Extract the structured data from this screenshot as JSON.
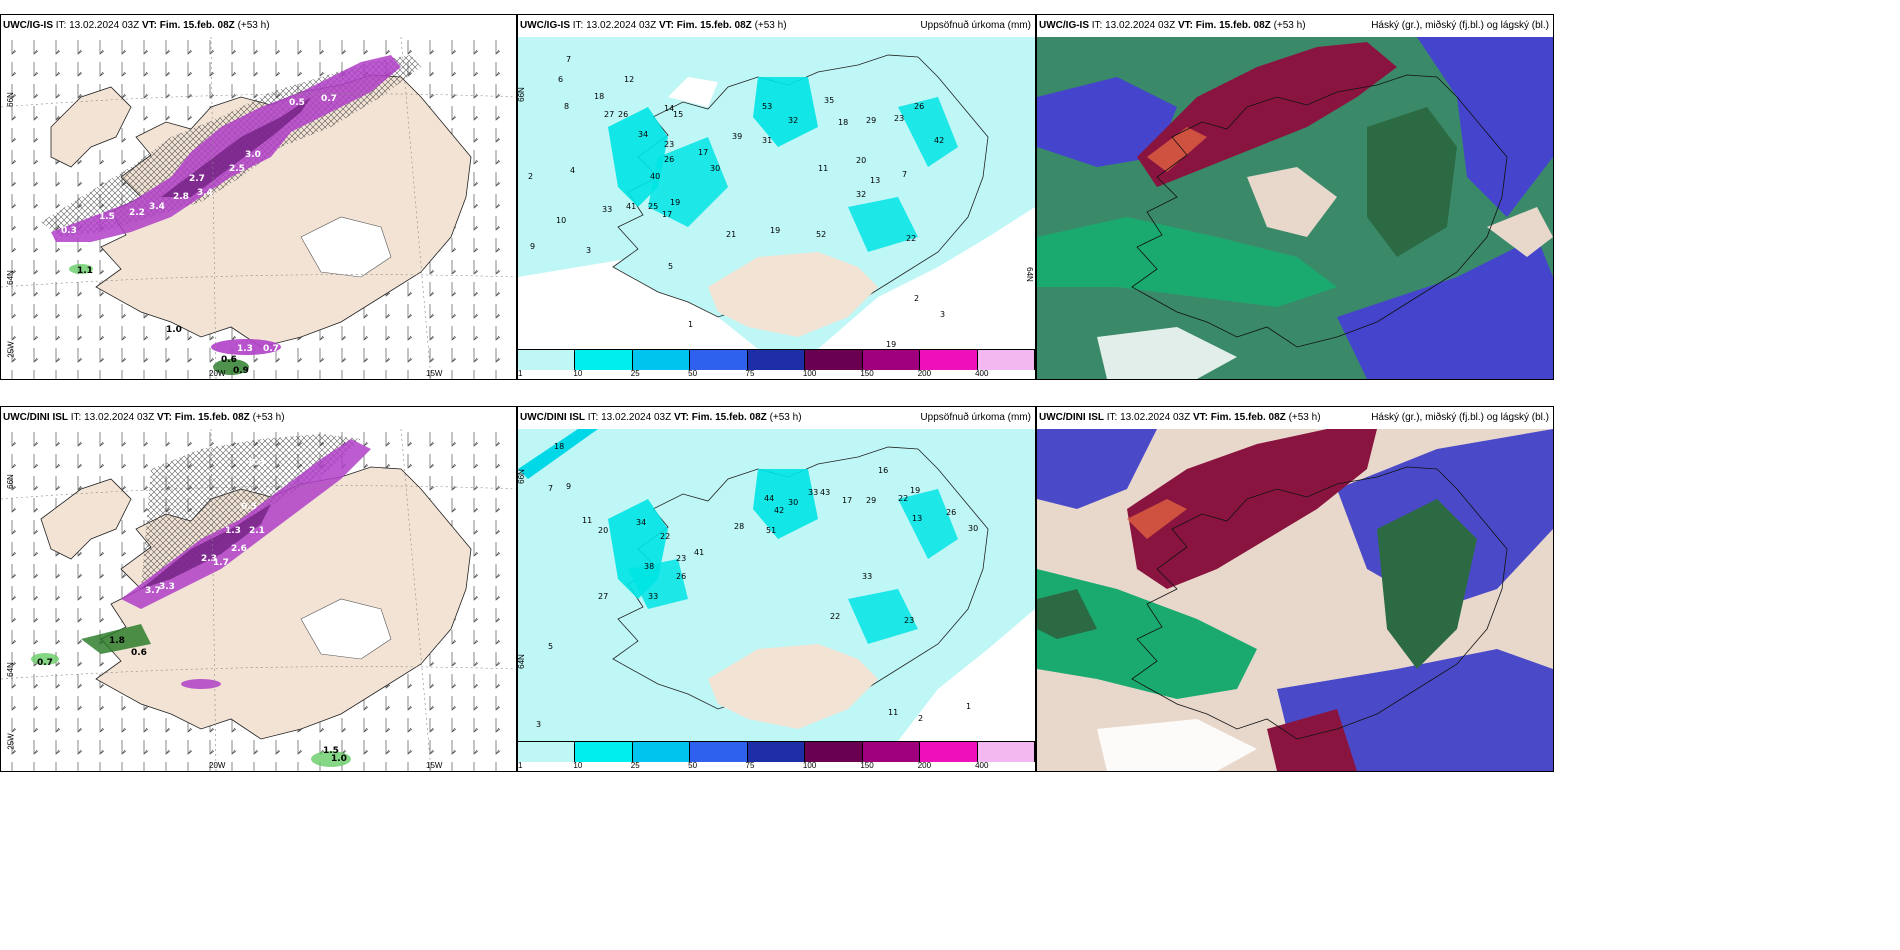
{
  "panels": {
    "tl": {
      "model": "UWC/IG-IS",
      "it_label": "IT:",
      "it": "13.02.2024 03Z",
      "vt_label": "VT:",
      "vt": "Fim. 15.feb. 08Z",
      "lead": "(+53 h)",
      "right": ""
    },
    "tm": {
      "model": "UWC/IG-IS",
      "it_label": "IT:",
      "it": "13.02.2024 03Z",
      "vt_label": "VT:",
      "vt": "Fim. 15.feb. 08Z",
      "lead": "(+53 h)",
      "right": "Uppsöfnuð úrkoma (mm)"
    },
    "tr": {
      "model": "UWC/IG-IS",
      "it_label": "IT:",
      "it": "13.02.2024 03Z",
      "vt_label": "VT:",
      "vt": "Fim. 15.feb. 08Z",
      "lead": "(+53 h)",
      "right": "Háský (gr.), miðský (fj.bl.) og lágský (bl.)"
    },
    "bl": {
      "model": "UWC/DINI ISL",
      "it_label": "IT:",
      "it": "13.02.2024 03Z",
      "vt_label": "VT:",
      "vt": "Fim. 15.feb. 08Z",
      "lead": "(+53 h)",
      "right": ""
    },
    "bm": {
      "model": "UWC/DINI ISL",
      "it_label": "IT:",
      "it": "13.02.2024 03Z",
      "vt_label": "VT:",
      "vt": "Fim. 15.feb. 08Z",
      "lead": "(+53 h)",
      "right": "Uppsöfnuð úrkoma (mm)"
    },
    "br": {
      "model": "UWC/DINI ISL",
      "it_label": "IT:",
      "it": "13.02.2024 03Z",
      "vt_label": "VT:",
      "vt": "Fim. 15.feb. 08Z",
      "lead": "(+53 h)",
      "right": "Háský (gr.), miðský (fj.bl.) og lágský (bl.)"
    }
  },
  "axes": {
    "lat66": "66N",
    "lat64": "64N",
    "lon25": "25W",
    "lon20": "20W",
    "lon15": "15W"
  },
  "legend": {
    "ticks": [
      "1",
      "10",
      "25",
      "50",
      "75",
      "100",
      "150",
      "200",
      "400"
    ],
    "colors": [
      "#bff6f6",
      "#00eeee",
      "#00c4ee",
      "#2e62ee",
      "#1e2ea8",
      "#6a0050",
      "#a0007e",
      "#ee10b8",
      "#f4b8f0"
    ]
  },
  "labels": {
    "tl": [
      "0.3",
      "0.7",
      "1.5",
      "2.2",
      "3.4",
      "2.8",
      "2.7",
      "3.4",
      "2.5",
      "3.0",
      "0.5",
      "1.1",
      "1.0",
      "0.6",
      "0.9",
      "1.3",
      "0.7"
    ],
    "tm": [
      "7",
      "6",
      "8",
      "18",
      "27",
      "26",
      "12",
      "14",
      "15",
      "34",
      "23",
      "26",
      "40",
      "33",
      "41",
      "25",
      "17",
      "19",
      "10",
      "9",
      "2",
      "4",
      "3",
      "39",
      "17",
      "30",
      "53",
      "32",
      "31",
      "35",
      "18",
      "29",
      "23",
      "26",
      "42",
      "32",
      "20",
      "13",
      "7",
      "11",
      "21",
      "19",
      "52",
      "22",
      "3",
      "1",
      "2",
      "5",
      "19"
    ],
    "bl": [
      "0.3",
      "0.5",
      "1.3",
      "2.1",
      "2.3",
      "2.6",
      "1.7",
      "3.3",
      "3.7",
      "0.7",
      "1.8",
      "0.6",
      "1.0",
      "1.5"
    ],
    "bm": [
      "18",
      "9",
      "7",
      "11",
      "20",
      "34",
      "22",
      "23",
      "38",
      "26",
      "33",
      "41",
      "27",
      "28",
      "44",
      "42",
      "30",
      "51",
      "33",
      "43",
      "17",
      "29",
      "22",
      "19",
      "26",
      "30",
      "13",
      "16",
      "33",
      "22",
      "23",
      "11",
      "2",
      "1",
      "3",
      "5"
    ]
  }
}
